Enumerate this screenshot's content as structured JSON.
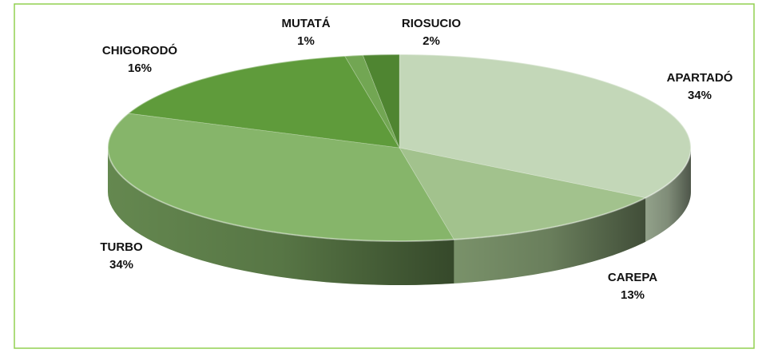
{
  "chart_data": {
    "type": "pie3d",
    "categories": [
      "APARTADÓ",
      "CAREPA",
      "TURBO",
      "CHIGORODÓ",
      "MUTATÁ",
      "RIOSUCIO"
    ],
    "values": [
      34,
      13,
      34,
      16,
      1,
      2
    ],
    "value_labels": [
      "34%",
      "13%",
      "34%",
      "16%",
      "1%",
      "2%"
    ],
    "colors": [
      "#c3d7b8",
      "#a2c28d",
      "#86b56a",
      "#5f9b3b",
      "#72a653",
      "#4f8531"
    ]
  }
}
